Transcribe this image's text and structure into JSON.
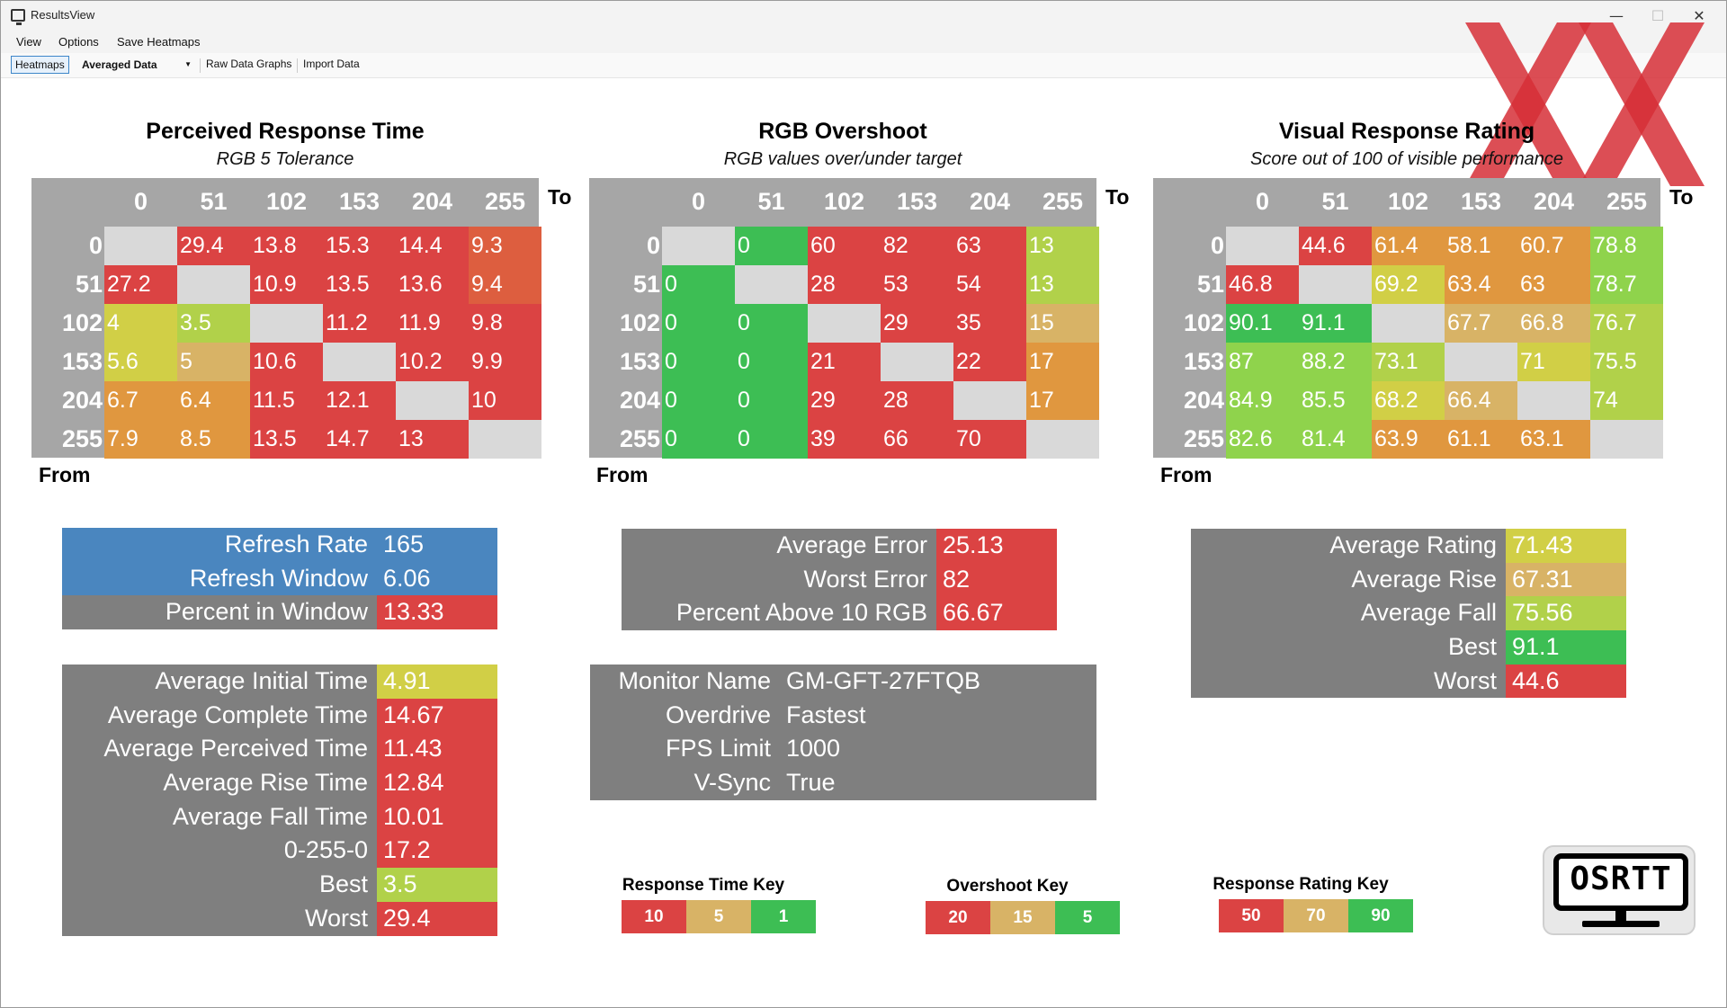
{
  "window": {
    "title": "ResultsView"
  },
  "menu": [
    "View",
    "Options",
    "Save Heatmaps"
  ],
  "toolbar": {
    "heatmaps": "Heatmaps",
    "dropdown": "Averaged Data",
    "raw_graphs": "Raw Data Graphs",
    "import": "Import Data"
  },
  "colors": {
    "red": "#db4343",
    "orange_red": "#dd5e3f",
    "orange": "#e0973f",
    "tan": "#d8b366",
    "yellow": "#d1cf46",
    "yellow_green": "#b1d14a",
    "light_green": "#8fd34c",
    "green": "#3dbe54",
    "empty": "#d9d9d9",
    "grid_gray": "#a6a6a6",
    "label_gray": "#7f7f7f",
    "blue": "#4a86bf"
  },
  "heatmaps": [
    {
      "title": "Perceived Response Time",
      "subtitle": "RGB 5 Tolerance",
      "to_label": "To",
      "from_label": "From",
      "columns": [
        "0",
        "51",
        "102",
        "153",
        "204",
        "255"
      ],
      "rows": [
        "0",
        "51",
        "102",
        "153",
        "204",
        "255"
      ],
      "values": [
        [
          "",
          "29.4",
          "13.8",
          "15.3",
          "14.4",
          "9.3"
        ],
        [
          "27.2",
          "",
          "10.9",
          "13.5",
          "13.6",
          "9.4"
        ],
        [
          "4",
          "3.5",
          "",
          "11.2",
          "11.9",
          "9.8"
        ],
        [
          "5.6",
          "5",
          "10.6",
          "",
          "10.2",
          "9.9"
        ],
        [
          "6.7",
          "6.4",
          "11.5",
          "12.1",
          "",
          "10"
        ],
        [
          "7.9",
          "8.5",
          "13.5",
          "14.7",
          "13",
          ""
        ]
      ],
      "cell_colors": [
        [
          "empty",
          "red",
          "red",
          "red",
          "red",
          "orange_red"
        ],
        [
          "red",
          "empty",
          "red",
          "red",
          "red",
          "orange_red"
        ],
        [
          "yellow",
          "yellow_green",
          "empty",
          "red",
          "red",
          "red"
        ],
        [
          "yellow",
          "tan",
          "red",
          "empty",
          "red",
          "red"
        ],
        [
          "orange",
          "orange",
          "red",
          "red",
          "empty",
          "red"
        ],
        [
          "orange",
          "orange",
          "red",
          "red",
          "red",
          "empty"
        ]
      ]
    },
    {
      "title": "RGB Overshoot",
      "subtitle": "RGB values over/under target",
      "to_label": "To",
      "from_label": "From",
      "columns": [
        "0",
        "51",
        "102",
        "153",
        "204",
        "255"
      ],
      "rows": [
        "0",
        "51",
        "102",
        "153",
        "204",
        "255"
      ],
      "values": [
        [
          "",
          "0",
          "60",
          "82",
          "63",
          "13"
        ],
        [
          "0",
          "",
          "28",
          "53",
          "54",
          "13"
        ],
        [
          "0",
          "0",
          "",
          "29",
          "35",
          "15"
        ],
        [
          "0",
          "0",
          "21",
          "",
          "22",
          "17"
        ],
        [
          "0",
          "0",
          "29",
          "28",
          "",
          "17"
        ],
        [
          "0",
          "0",
          "39",
          "66",
          "70",
          ""
        ]
      ],
      "cell_colors": [
        [
          "empty",
          "green",
          "red",
          "red",
          "red",
          "yellow_green"
        ],
        [
          "green",
          "empty",
          "red",
          "red",
          "red",
          "yellow_green"
        ],
        [
          "green",
          "green",
          "empty",
          "red",
          "red",
          "tan"
        ],
        [
          "green",
          "green",
          "red",
          "empty",
          "red",
          "orange"
        ],
        [
          "green",
          "green",
          "red",
          "red",
          "empty",
          "orange"
        ],
        [
          "green",
          "green",
          "red",
          "red",
          "red",
          "empty"
        ]
      ]
    },
    {
      "title": "Visual Response Rating",
      "subtitle": "Score out of 100 of visible performance",
      "to_label": "To",
      "from_label": "From",
      "columns": [
        "0",
        "51",
        "102",
        "153",
        "204",
        "255"
      ],
      "rows": [
        "0",
        "51",
        "102",
        "153",
        "204",
        "255"
      ],
      "values": [
        [
          "",
          "44.6",
          "61.4",
          "58.1",
          "60.7",
          "78.8"
        ],
        [
          "46.8",
          "",
          "69.2",
          "63.4",
          "63",
          "78.7"
        ],
        [
          "90.1",
          "91.1",
          "",
          "67.7",
          "66.8",
          "76.7"
        ],
        [
          "87",
          "88.2",
          "73.1",
          "",
          "71",
          "75.5"
        ],
        [
          "84.9",
          "85.5",
          "68.2",
          "66.4",
          "",
          "74"
        ],
        [
          "82.6",
          "81.4",
          "63.9",
          "61.1",
          "63.1",
          ""
        ]
      ],
      "cell_colors": [
        [
          "empty",
          "red",
          "orange",
          "orange",
          "orange",
          "light_green"
        ],
        [
          "red",
          "empty",
          "yellow",
          "orange",
          "orange",
          "light_green"
        ],
        [
          "green",
          "green",
          "empty",
          "tan",
          "tan",
          "yellow_green"
        ],
        [
          "light_green",
          "light_green",
          "yellow_green",
          "empty",
          "yellow",
          "yellow_green"
        ],
        [
          "light_green",
          "light_green",
          "yellow",
          "tan",
          "empty",
          "yellow_green"
        ],
        [
          "light_green",
          "light_green",
          "orange",
          "orange",
          "orange",
          "empty"
        ]
      ]
    }
  ],
  "refresh_table": [
    {
      "label": "Refresh Rate",
      "value": "165",
      "label_color": "blue",
      "value_color": "blue"
    },
    {
      "label": "Refresh Window",
      "value": "6.06",
      "label_color": "blue",
      "value_color": "blue"
    },
    {
      "label": "Percent in Window",
      "value": "13.33",
      "label_color": "label_gray",
      "value_color": "red"
    }
  ],
  "time_table": [
    {
      "label": "Average Initial Time",
      "value": "4.91",
      "value_color": "yellow"
    },
    {
      "label": "Average Complete Time",
      "value": "14.67",
      "value_color": "red"
    },
    {
      "label": "Average Perceived Time",
      "value": "11.43",
      "value_color": "red"
    },
    {
      "label": "Average Rise Time",
      "value": "12.84",
      "value_color": "red"
    },
    {
      "label": "Average Fall Time",
      "value": "10.01",
      "value_color": "red"
    },
    {
      "label": "0-255-0",
      "value": "17.2",
      "value_color": "red"
    },
    {
      "label": "Best",
      "value": "3.5",
      "value_color": "yellow_green"
    },
    {
      "label": "Worst",
      "value": "29.4",
      "value_color": "red"
    }
  ],
  "error_table": [
    {
      "label": "Average Error",
      "value": "25.13",
      "value_color": "red"
    },
    {
      "label": "Worst Error",
      "value": "82",
      "value_color": "red"
    },
    {
      "label": "Percent Above 10 RGB",
      "value": "66.67",
      "value_color": "red"
    }
  ],
  "monitor_table": [
    {
      "label": "Monitor Name",
      "value": "GM-GFT-27FTQB"
    },
    {
      "label": "Overdrive",
      "value": "Fastest"
    },
    {
      "label": "FPS Limit",
      "value": "1000"
    },
    {
      "label": "V-Sync",
      "value": "True"
    }
  ],
  "rating_table": [
    {
      "label": "Average Rating",
      "value": "71.43",
      "value_color": "yellow"
    },
    {
      "label": "Average Rise",
      "value": "67.31",
      "value_color": "tan"
    },
    {
      "label": "Average Fall",
      "value": "75.56",
      "value_color": "yellow_green"
    },
    {
      "label": "Best",
      "value": "91.1",
      "value_color": "green"
    },
    {
      "label": "Worst",
      "value": "44.6",
      "value_color": "red"
    }
  ],
  "keys": [
    {
      "title": "Response Time Key",
      "items": [
        {
          "value": "10",
          "color": "red"
        },
        {
          "value": "5",
          "color": "tan"
        },
        {
          "value": "1",
          "color": "green"
        }
      ]
    },
    {
      "title": "Overshoot Key",
      "items": [
        {
          "value": "20",
          "color": "red"
        },
        {
          "value": "15",
          "color": "tan"
        },
        {
          "value": "5",
          "color": "green"
        }
      ]
    },
    {
      "title": "Response Rating Key",
      "items": [
        {
          "value": "50",
          "color": "red"
        },
        {
          "value": "70",
          "color": "tan"
        },
        {
          "value": "90",
          "color": "green"
        }
      ]
    }
  ],
  "logo": {
    "text": "OSRTT"
  }
}
